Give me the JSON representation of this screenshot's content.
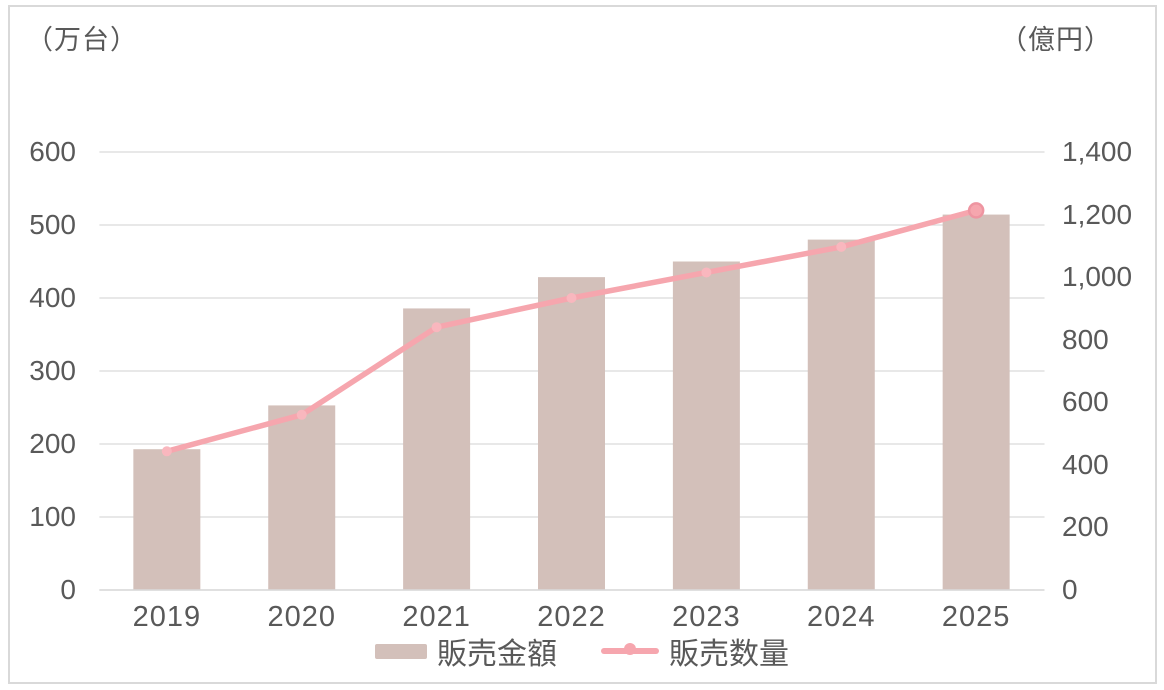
{
  "chart_data": {
    "type": "combo-bar-line",
    "categories": [
      "2019",
      "2020",
      "2021",
      "2022",
      "2023",
      "2024",
      "2025"
    ],
    "series": [
      {
        "name": "販売金額",
        "type": "bar",
        "axis": "right",
        "unit": "億円",
        "values": [
          450,
          590,
          900,
          1000,
          1050,
          1120,
          1200
        ],
        "color": "#d3c0ba"
      },
      {
        "name": "販売数量",
        "type": "line",
        "axis": "left",
        "unit": "万台",
        "values": [
          190,
          240,
          360,
          400,
          435,
          470,
          520
        ],
        "color": "#f6a6ae",
        "marker_color": "#f9b7be",
        "end_marker_stroke": "#ee95a1"
      }
    ],
    "left_axis": {
      "unit_label": "（万台）",
      "min": 0,
      "max": 600,
      "step": 100,
      "ticks": [
        "0",
        "100",
        "200",
        "300",
        "400",
        "500",
        "600"
      ]
    },
    "right_axis": {
      "unit_label": "（億円）",
      "min": 0,
      "max": 1400,
      "step": 200,
      "ticks": [
        "0",
        "200",
        "400",
        "600",
        "800",
        "1,000",
        "1,200",
        "1,400"
      ]
    },
    "grid": true,
    "legend_position": "bottom-center",
    "colors": {
      "grid": "#d9d9d9",
      "axis_line": "#d9d9d9",
      "text": "#595959",
      "frame_border": "#d9d9d9",
      "background": "#ffffff"
    }
  }
}
